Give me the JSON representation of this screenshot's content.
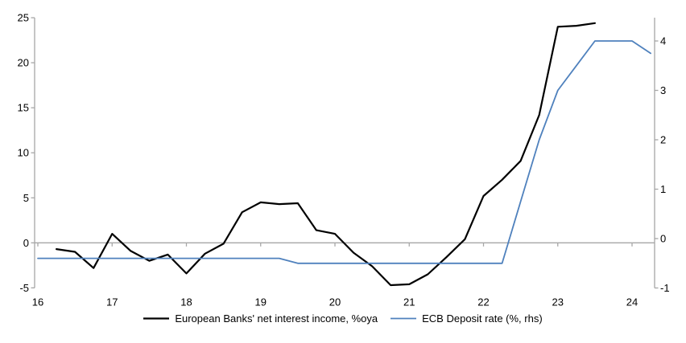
{
  "page": {
    "background": "#FFFFFF"
  },
  "chart_data": {
    "type": "line",
    "title": "",
    "grid": "zero-line-only",
    "legend_position": "bottom",
    "x_axis": {
      "ticks": [
        16,
        17,
        18,
        19,
        20,
        21,
        22,
        23,
        24
      ],
      "range": [
        16,
        24.3
      ]
    },
    "left_y_axis": {
      "ticks": [
        -5,
        0,
        5,
        10,
        15,
        20,
        25
      ],
      "range": [
        -5,
        25
      ],
      "label": ""
    },
    "right_y_axis": {
      "ticks": [
        -1,
        0,
        1,
        2,
        3,
        4
      ],
      "range": [
        -1,
        4.5
      ],
      "label": ""
    },
    "colors": {
      "axis": "#A6A6A6",
      "text": "#000000"
    },
    "series": [
      {
        "name": "European Banks' net interest income, %oya",
        "axis": "left",
        "color": "#000000",
        "x": [
          16.25,
          16.5,
          16.75,
          17,
          17.25,
          17.5,
          17.75,
          18,
          18.25,
          18.5,
          18.75,
          19,
          19.25,
          19.5,
          19.75,
          20,
          20.25,
          20.5,
          20.75,
          21,
          21.25,
          21.5,
          21.75,
          22,
          22.25,
          22.5,
          22.75,
          23,
          23.25,
          23.5
        ],
        "y": [
          -0.7,
          -1.0,
          -2.8,
          1.0,
          -0.9,
          -2.0,
          -1.3,
          -3.4,
          -1.2,
          -0.1,
          3.4,
          4.5,
          4.3,
          4.4,
          1.4,
          1.0,
          -1.1,
          -2.6,
          -4.7,
          -4.6,
          -3.5,
          -1.6,
          0.4,
          5.2,
          7.0,
          9.1,
          14.2,
          24.0,
          24.1,
          24.4
        ]
      },
      {
        "name": "ECB Deposit rate (%, rhs)",
        "axis": "right",
        "color": "#4F81BD",
        "x": [
          16,
          16.25,
          16.5,
          16.75,
          17,
          17.25,
          17.5,
          17.75,
          18,
          18.25,
          18.5,
          18.75,
          19,
          19.25,
          19.5,
          19.75,
          20,
          20.25,
          20.5,
          20.75,
          21,
          21.25,
          21.5,
          21.75,
          22,
          22.25,
          22.5,
          22.75,
          23,
          23.25,
          23.5,
          23.75,
          24,
          24.25
        ],
        "y": [
          -0.4,
          -0.4,
          -0.4,
          -0.4,
          -0.4,
          -0.4,
          -0.4,
          -0.4,
          -0.4,
          -0.4,
          -0.4,
          -0.4,
          -0.4,
          -0.4,
          -0.5,
          -0.5,
          -0.5,
          -0.5,
          -0.5,
          -0.5,
          -0.5,
          -0.5,
          -0.5,
          -0.5,
          -0.5,
          -0.5,
          0.75,
          2.0,
          3.0,
          3.5,
          4.0,
          4.0,
          4.0,
          3.75
        ]
      }
    ]
  }
}
